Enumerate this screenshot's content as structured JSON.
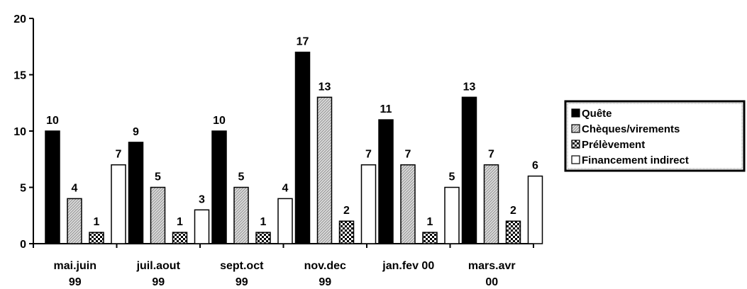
{
  "chart_data": {
    "type": "bar",
    "categories": [
      [
        "mai.juin",
        "99"
      ],
      [
        "juil.aout",
        "99"
      ],
      [
        "sept.oct",
        "99"
      ],
      [
        "nov.dec",
        "99"
      ],
      [
        "jan.fev 00",
        ""
      ],
      [
        "mars.avr",
        "00"
      ]
    ],
    "series": [
      {
        "name": "Quête",
        "values": [
          10,
          9,
          10,
          17,
          11,
          13
        ],
        "fill": "solid",
        "color": "#000000"
      },
      {
        "name": "Chèques/virements",
        "values": [
          4,
          5,
          5,
          13,
          7,
          7
        ],
        "fill": "hatch",
        "color": "#c8c8c8"
      },
      {
        "name": "Prélèvement",
        "values": [
          1,
          1,
          1,
          2,
          1,
          2
        ],
        "fill": "checker",
        "color": "#000000"
      },
      {
        "name": "Financement indirect",
        "values": [
          7,
          3,
          4,
          7,
          5,
          6
        ],
        "fill": "empty",
        "color": "#ffffff"
      }
    ],
    "ylim": [
      0,
      20
    ],
    "yticks": [
      "0",
      "5",
      "10",
      "15",
      "20"
    ],
    "data_labels": true,
    "legend_position": "right",
    "grid": false,
    "title": "",
    "xlabel": "",
    "ylabel": ""
  }
}
